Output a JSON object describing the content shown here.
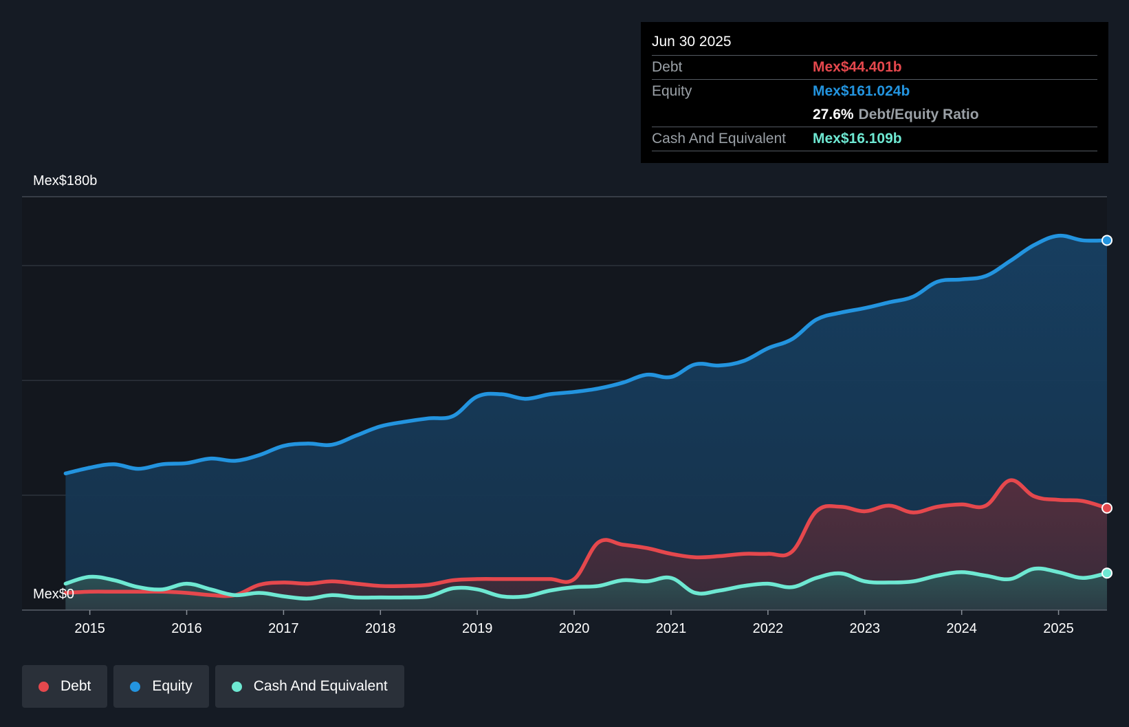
{
  "colors": {
    "background": "#151b24",
    "plot_background": "#13171e",
    "debt": "#e5484d",
    "equity": "#2394df",
    "cash": "#6ee8d2",
    "grid": "#3a414b",
    "text_muted": "#9aa0a6"
  },
  "tooltip": {
    "date": "Jun 30 2025",
    "rows": {
      "debt": {
        "label": "Debt",
        "value": "Mex$44.401b"
      },
      "equity": {
        "label": "Equity",
        "value": "Mex$161.024b"
      },
      "ratio": {
        "value": "27.6%",
        "label": "Debt/Equity Ratio"
      },
      "cash": {
        "label": "Cash And Equivalent",
        "value": "Mex$16.109b"
      }
    }
  },
  "legend": {
    "items": [
      {
        "key": "debt",
        "label": "Debt"
      },
      {
        "key": "equity",
        "label": "Equity"
      },
      {
        "key": "cash",
        "label": "Cash And Equivalent"
      }
    ]
  },
  "chart_data": {
    "type": "area",
    "title": "",
    "xlabel": "",
    "ylabel": "",
    "y_top_label": "Mex$180b",
    "y_bottom_label": "Mex$0",
    "ylim": [
      0,
      180
    ],
    "xlim": [
      2014.3,
      2025.5
    ],
    "grid_values": [
      50,
      100,
      150,
      180
    ],
    "x_ticks": [
      {
        "value": 2015,
        "label": "2015"
      },
      {
        "value": 2016,
        "label": "2016"
      },
      {
        "value": 2017,
        "label": "2017"
      },
      {
        "value": 2018,
        "label": "2018"
      },
      {
        "value": 2019,
        "label": "2019"
      },
      {
        "value": 2020,
        "label": "2020"
      },
      {
        "value": 2021,
        "label": "2021"
      },
      {
        "value": 2022,
        "label": "2022"
      },
      {
        "value": 2023,
        "label": "2023"
      },
      {
        "value": 2024,
        "label": "2024"
      },
      {
        "value": 2025,
        "label": "2025"
      }
    ],
    "x": [
      2014.75,
      2015.0,
      2015.25,
      2015.5,
      2015.75,
      2016.0,
      2016.25,
      2016.5,
      2016.75,
      2017.0,
      2017.25,
      2017.5,
      2017.75,
      2018.0,
      2018.25,
      2018.5,
      2018.75,
      2019.0,
      2019.25,
      2019.5,
      2019.75,
      2020.0,
      2020.25,
      2020.5,
      2020.75,
      2021.0,
      2021.25,
      2021.5,
      2021.75,
      2022.0,
      2022.25,
      2022.5,
      2022.75,
      2023.0,
      2023.25,
      2023.5,
      2023.75,
      2024.0,
      2024.25,
      2024.5,
      2024.75,
      2025.0,
      2025.25,
      2025.5
    ],
    "series": [
      {
        "name": "Equity",
        "key": "equity",
        "values": [
          59.5,
          62.0,
          63.5,
          61.5,
          63.5,
          64.0,
          66.0,
          65.0,
          67.5,
          71.5,
          72.5,
          72.0,
          76.0,
          80.0,
          82.0,
          83.5,
          84.5,
          93.0,
          94.0,
          92.0,
          94.0,
          95.0,
          96.5,
          99.0,
          102.5,
          101.5,
          107.0,
          106.5,
          108.5,
          114.0,
          118.0,
          126.5,
          129.5,
          131.5,
          134.0,
          136.5,
          143.0,
          144.0,
          145.5,
          152.0,
          159.0,
          163.0,
          161.0,
          161.0
        ]
      },
      {
        "name": "Debt",
        "key": "debt",
        "values": [
          7.5,
          8.0,
          8.0,
          8.0,
          8.0,
          7.5,
          6.5,
          6.5,
          11.0,
          12.0,
          11.5,
          12.5,
          11.5,
          10.5,
          10.5,
          11.0,
          13.0,
          13.5,
          13.5,
          13.5,
          13.5,
          13.5,
          29.5,
          28.5,
          27.0,
          24.5,
          23.0,
          23.5,
          24.5,
          24.5,
          25.5,
          43.0,
          45.0,
          43.0,
          45.5,
          42.5,
          45.0,
          46.0,
          45.5,
          56.5,
          49.5,
          48.0,
          47.5,
          44.4
        ]
      },
      {
        "name": "Cash And Equivalent",
        "key": "cash",
        "values": [
          11.5,
          14.5,
          13.0,
          10.0,
          9.0,
          11.5,
          9.0,
          6.5,
          7.5,
          6.0,
          5.0,
          6.5,
          5.5,
          5.5,
          5.5,
          6.0,
          9.5,
          9.0,
          6.0,
          6.0,
          8.5,
          10.0,
          10.5,
          13.0,
          12.5,
          14.0,
          7.5,
          8.5,
          10.5,
          11.5,
          10.0,
          14.0,
          16.0,
          12.5,
          12.0,
          12.5,
          15.0,
          16.5,
          15.0,
          13.5,
          18.0,
          16.5,
          14.0,
          16.109
        ]
      }
    ]
  }
}
